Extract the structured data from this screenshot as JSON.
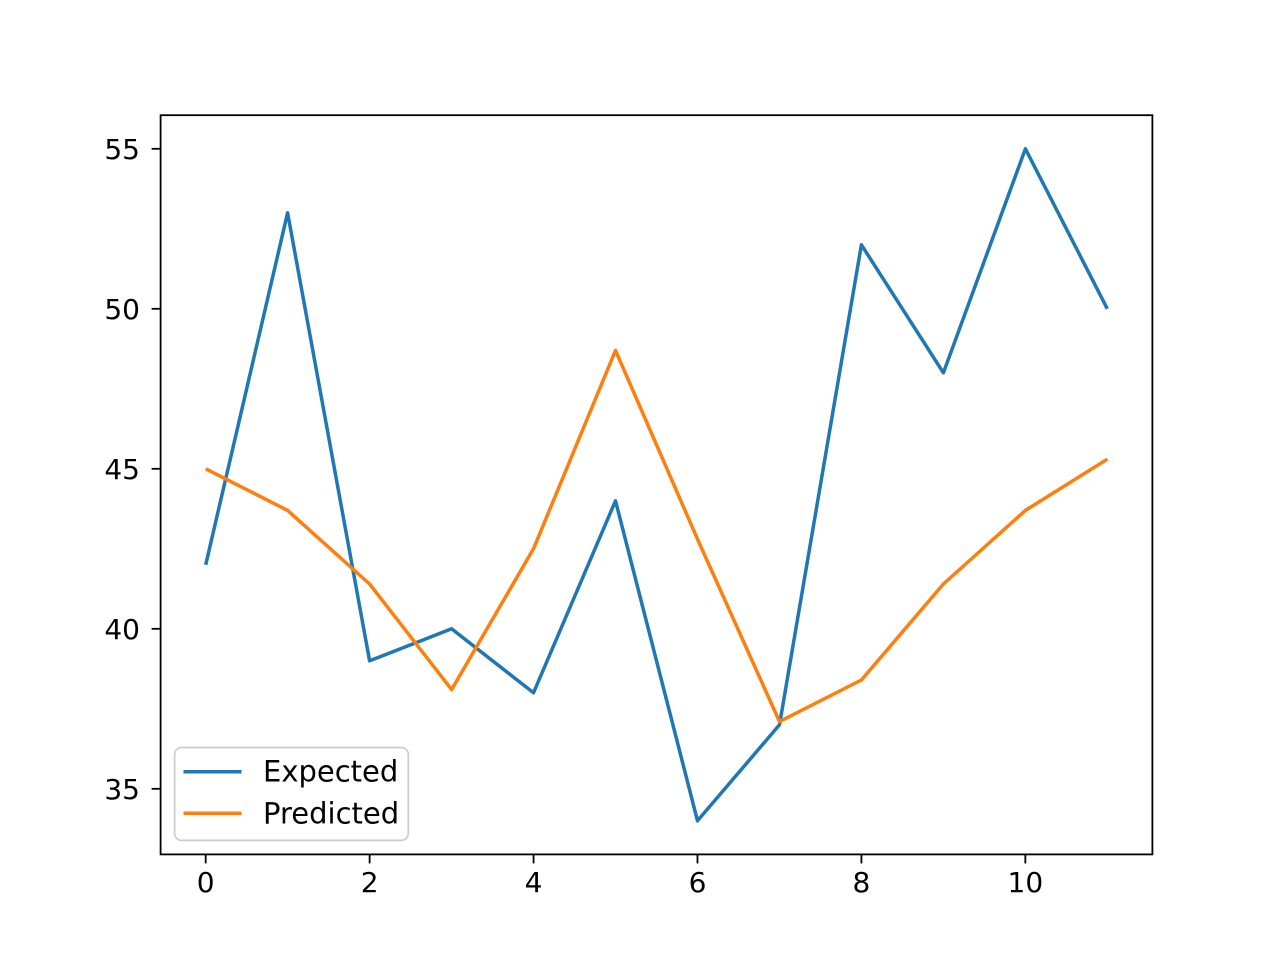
{
  "figure": {
    "background": "#ffffff",
    "description": "Line chart comparing Expected vs Predicted values"
  },
  "chart_data": {
    "type": "line",
    "title": "",
    "xlabel": "",
    "ylabel": "",
    "x": [
      0,
      1,
      2,
      3,
      4,
      5,
      6,
      7,
      8,
      9,
      10,
      11
    ],
    "series": [
      {
        "name": "Expected",
        "color": "#1f77b4",
        "values": [
          42,
          53,
          39,
          40,
          38,
          44,
          34,
          37,
          52,
          48,
          55,
          50
        ]
      },
      {
        "name": "Predicted",
        "color": "#ff7f0e",
        "values": [
          45.0,
          43.7,
          41.4,
          38.1,
          42.5,
          48.7,
          42.8,
          37.1,
          38.4,
          41.4,
          43.7,
          45.3
        ]
      }
    ],
    "xlim": [
      -0.55,
      11.55
    ],
    "ylim": [
      32.95,
      56.05
    ],
    "xticks": [
      0,
      2,
      4,
      6,
      8,
      10
    ],
    "yticks": [
      35,
      40,
      45,
      50,
      55
    ],
    "xtick_labels": [
      "0",
      "2",
      "4",
      "6",
      "8",
      "10"
    ],
    "ytick_labels": [
      "35",
      "40",
      "45",
      "50",
      "55"
    ],
    "grid": false,
    "legend_position": "lower left",
    "axis_color": "#000000",
    "legend_border_color": "#cccccc",
    "legend_background": "#ffffff"
  }
}
